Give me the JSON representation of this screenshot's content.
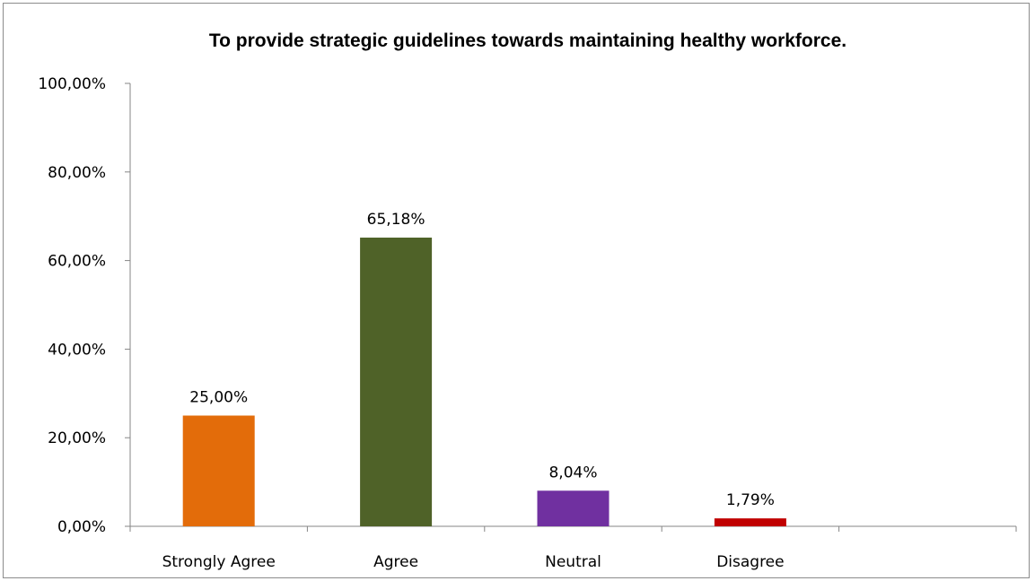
{
  "chart_data": {
    "type": "bar",
    "title": "To provide strategic guidelines towards maintaining healthy workforce.",
    "xlabel": "",
    "ylabel": "",
    "ylim": [
      0,
      100
    ],
    "y_ticks": [
      "0,00%",
      "20,00%",
      "40,00%",
      "60,00%",
      "80,00%",
      "100,00%"
    ],
    "categories": [
      "Strongly Agree",
      "Agree",
      "Neutral",
      "Disagree"
    ],
    "values": [
      25.0,
      65.18,
      8.04,
      1.79
    ],
    "data_labels": [
      "25,00%",
      "65,18%",
      "8,04%",
      "1,79%"
    ],
    "colors": [
      "#e36c0a",
      "#4f6228",
      "#7030a0",
      "#c00000"
    ],
    "grid": false,
    "legend": "none"
  }
}
